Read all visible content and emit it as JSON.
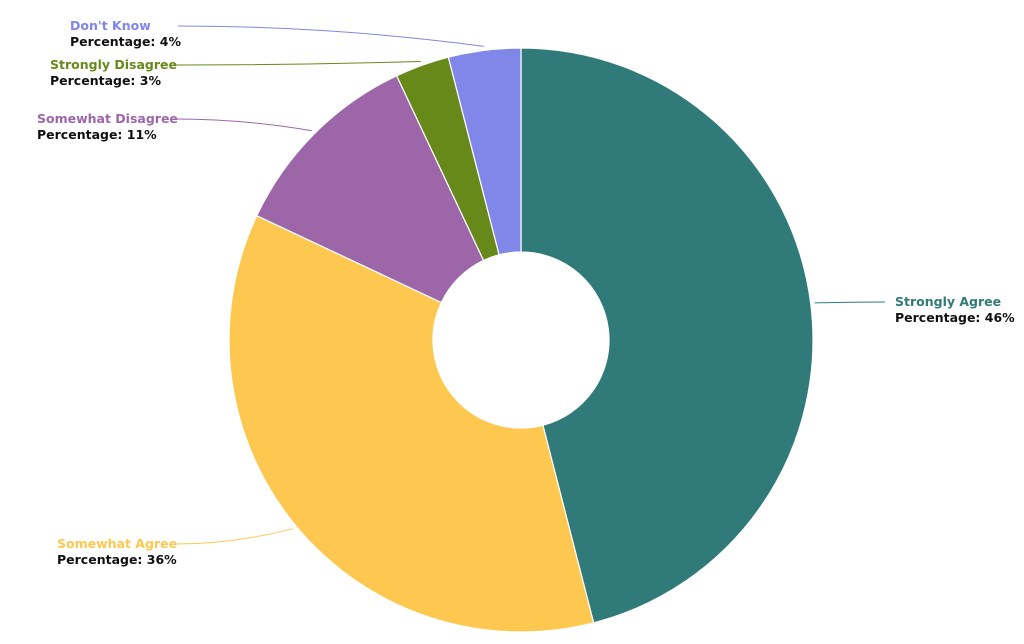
{
  "chart_data": {
    "type": "pie",
    "variant": "donut",
    "title": "",
    "value_prefix": "Percentage: ",
    "value_suffix": "%",
    "slices": [
      {
        "name": "Strongly Agree",
        "value": 46,
        "color": "#317a7a"
      },
      {
        "name": "Somewhat Agree",
        "value": 36,
        "color": "#fec850"
      },
      {
        "name": "Somewhat Disagree",
        "value": 11,
        "color": "#9d66a8"
      },
      {
        "name": "Strongly Disagree",
        "value": 3,
        "color": "#66891a"
      },
      {
        "name": "Don't Know",
        "value": 4,
        "color": "#8186e9"
      }
    ],
    "legend": "none",
    "grid": false
  }
}
